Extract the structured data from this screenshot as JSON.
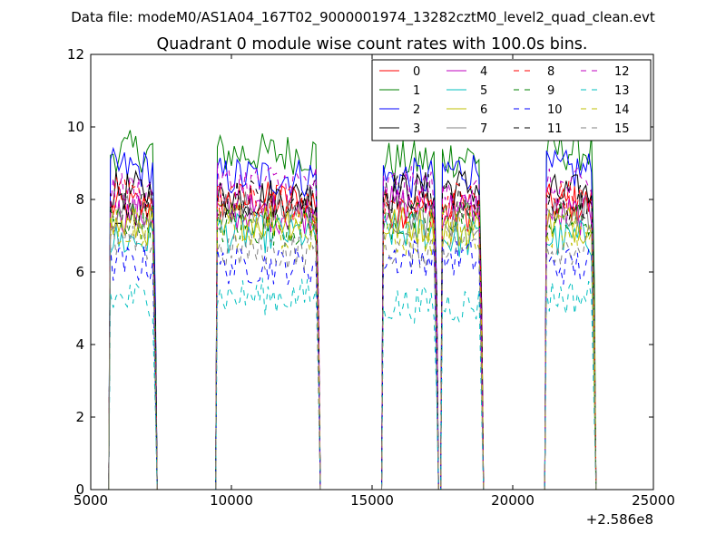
{
  "chart_data": {
    "type": "line",
    "suptitle": "Data file: modeM0/AS1A04_167T02_9000001974_13282cztM0_level2_quad_clean.evt",
    "title": "Quadrant 0 module wise count rates with 100.0s bins.",
    "xlabel": "",
    "ylabel": "",
    "xlim": [
      5000,
      25000
    ],
    "ylim": [
      0,
      12
    ],
    "x_offset_label": "+2.586e8",
    "x_ticks": [
      5000,
      10000,
      15000,
      20000,
      25000
    ],
    "y_ticks": [
      0,
      2,
      4,
      6,
      8,
      10,
      12
    ],
    "grid": false,
    "legend_position": "upper-right",
    "legend_columns": 4,
    "good_time_intervals": [
      [
        5700,
        7300
      ],
      [
        9500,
        13100
      ],
      [
        15400,
        17300
      ],
      [
        17500,
        18900
      ],
      [
        21200,
        22900
      ]
    ],
    "series": [
      {
        "name": "0",
        "color": "#ff0000",
        "dash": "solid",
        "level": 7.8
      },
      {
        "name": "1",
        "color": "#008000",
        "dash": "solid",
        "level": 9.2
      },
      {
        "name": "2",
        "color": "#0000ff",
        "dash": "solid",
        "level": 8.7
      },
      {
        "name": "3",
        "color": "#000000",
        "dash": "solid",
        "level": 8.2
      },
      {
        "name": "4",
        "color": "#bf00bf",
        "dash": "solid",
        "level": 7.7
      },
      {
        "name": "5",
        "color": "#00bfbf",
        "dash": "solid",
        "level": 7.0
      },
      {
        "name": "6",
        "color": "#bfbf00",
        "dash": "solid",
        "level": 7.3
      },
      {
        "name": "7",
        "color": "#808080",
        "dash": "solid",
        "level": 7.6
      },
      {
        "name": "8",
        "color": "#ff0000",
        "dash": "dashed",
        "level": 7.9
      },
      {
        "name": "9",
        "color": "#008000",
        "dash": "dashed",
        "level": 7.4
      },
      {
        "name": "10",
        "color": "#0000ff",
        "dash": "dashed",
        "level": 6.3
      },
      {
        "name": "11",
        "color": "#000000",
        "dash": "dashed",
        "level": 8.0
      },
      {
        "name": "12",
        "color": "#bf00bf",
        "dash": "dashed",
        "level": 8.3
      },
      {
        "name": "13",
        "color": "#00bfbf",
        "dash": "dashed",
        "level": 5.2
      },
      {
        "name": "14",
        "color": "#bfbf00",
        "dash": "dashed",
        "level": 7.1
      },
      {
        "name": "15",
        "color": "#808080",
        "dash": "dashed",
        "level": 6.7
      }
    ]
  }
}
